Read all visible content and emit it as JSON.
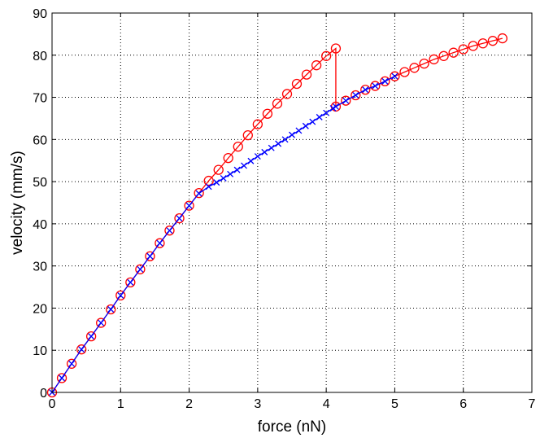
{
  "chart_data": {
    "type": "line",
    "xlabel": "force (nN)",
    "ylabel": "velocity (mm/s)",
    "xlim": [
      0,
      7
    ],
    "ylim": [
      0,
      90
    ],
    "xticks": [
      0,
      1,
      2,
      3,
      4,
      5,
      6,
      7
    ],
    "yticks": [
      0,
      10,
      20,
      30,
      40,
      50,
      60,
      70,
      80,
      90
    ],
    "grid": true,
    "grid_style": "dotted",
    "series": [
      {
        "color": "#0000ff",
        "marker": "x",
        "x": [
          0.0,
          0.143,
          0.286,
          0.429,
          0.571,
          0.714,
          0.857,
          1.0,
          1.143,
          1.286,
          1.429,
          1.571,
          1.714,
          1.857,
          2.0,
          2.143,
          2.286,
          2.4,
          2.5,
          2.6,
          2.7,
          2.8,
          2.9,
          3.0,
          3.1,
          3.2,
          3.3,
          3.4,
          3.5,
          3.6,
          3.7,
          3.8,
          3.9,
          4.0,
          4.1,
          4.14,
          4.286,
          4.429,
          4.571,
          4.714,
          4.857,
          5.0
        ],
        "y": [
          0.0,
          3.4,
          6.8,
          10.2,
          13.3,
          16.5,
          19.7,
          23.0,
          26.1,
          29.2,
          32.3,
          35.4,
          38.4,
          41.3,
          44.3,
          47.2,
          48.8,
          49.8,
          50.8,
          51.8,
          52.8,
          53.8,
          54.9,
          56.0,
          57.0,
          58.0,
          59.0,
          60.0,
          61.1,
          62.1,
          63.2,
          64.2,
          65.3,
          66.3,
          67.4,
          67.8,
          69.2,
          70.5,
          71.8,
          72.7,
          73.8,
          75.0
        ]
      },
      {
        "color": "#ff0000",
        "marker": "o",
        "x": [
          0.0,
          0.143,
          0.286,
          0.429,
          0.571,
          0.714,
          0.857,
          1.0,
          1.143,
          1.286,
          1.429,
          1.571,
          1.714,
          1.857,
          2.0,
          2.143,
          2.286,
          2.429,
          2.571,
          2.714,
          2.857,
          3.0,
          3.143,
          3.286,
          3.429,
          3.571,
          3.714,
          3.857,
          4.0,
          4.14,
          4.14,
          4.286,
          4.429,
          4.571,
          4.714,
          4.857,
          5.0,
          5.143,
          5.286,
          5.429,
          5.571,
          5.714,
          5.857,
          6.0,
          6.143,
          6.286,
          6.429,
          6.571
        ],
        "y": [
          0.0,
          3.4,
          6.8,
          10.2,
          13.3,
          16.5,
          19.7,
          23.0,
          26.1,
          29.2,
          32.3,
          35.4,
          38.4,
          41.3,
          44.3,
          47.3,
          50.2,
          52.8,
          55.6,
          58.3,
          61.0,
          63.6,
          66.1,
          68.5,
          70.8,
          73.2,
          75.4,
          77.6,
          79.8,
          81.6,
          67.8,
          69.2,
          70.5,
          71.8,
          72.7,
          73.8,
          75.0,
          76.0,
          77.0,
          78.0,
          79.0,
          79.8,
          80.6,
          81.4,
          82.2,
          82.8,
          83.4,
          84.0
        ]
      }
    ]
  }
}
